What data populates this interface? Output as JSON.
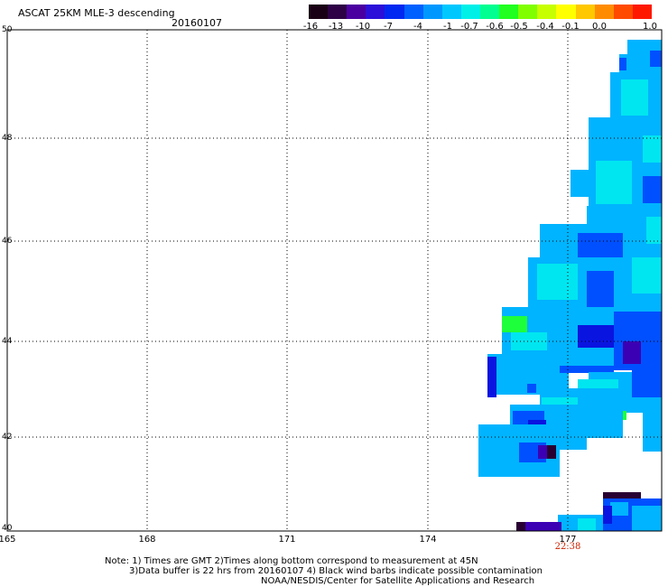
{
  "header": {
    "title": "ASCAT 25KM MLE-3 descending",
    "date": "20160107"
  },
  "colorbar": {
    "labels": [
      "-16",
      "-13",
      "-10",
      "-7",
      "-4",
      "-1",
      "-0.7",
      "-0.6",
      "-0.5",
      "-0.4",
      "-0.1",
      "0.0",
      "1.0"
    ],
    "colors": [
      "#1a0014",
      "#2e0046",
      "#4a00a0",
      "#2a10d8",
      "#0028f0",
      "#0060ff",
      "#0098ff",
      "#00c8ff",
      "#00f0e8",
      "#00ff90",
      "#20ff20",
      "#80ff00",
      "#c8ff00",
      "#ffff00",
      "#ffc800",
      "#ff8c00",
      "#ff4a00",
      "#ff1800"
    ]
  },
  "axes": {
    "lat_labels": [
      "50",
      "48",
      "46",
      "44",
      "42",
      "40"
    ],
    "lon_labels": [
      "165",
      "168",
      "171",
      "174",
      "177"
    ],
    "time_label": "22:38"
  },
  "notes": {
    "line1": "Note: 1) Times are GMT 2)Times along bottom correspond to measurement at 45N",
    "line2": "3)Data buffer is 22 hrs from 20160107 4) Black wind barbs indicate possible contamination",
    "line3": "NOAA/NESDIS/Center for Satellite Applications and Research"
  },
  "map_palette": {
    "lightblue": "#00b4ff",
    "cyan": "#00e6f0",
    "blue": "#0050ff",
    "darkblue": "#0a14e0",
    "purple": "#3c00b4",
    "dark": "#280032",
    "green": "#1eff3c"
  }
}
